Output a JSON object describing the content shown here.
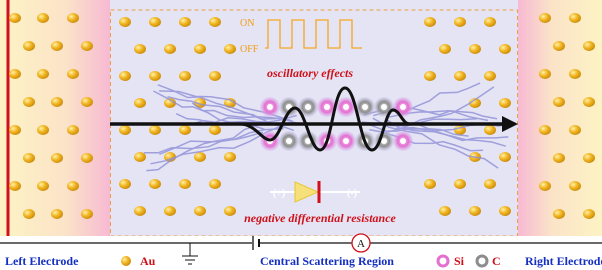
{
  "top": {
    "on": "ON",
    "off": "OFF"
  },
  "labels": {
    "oscillatory": "oscillatory effects",
    "ndr": "negative differential resistance",
    "plus": "(+)",
    "minus": "(-)",
    "ammeter": "A"
  },
  "legend": {
    "left_electrode": "Left Electrode",
    "au": "Au",
    "central": "Central Scattering Region",
    "si": "Si",
    "c": "C",
    "right_electrode": "Right Electrode"
  }
}
